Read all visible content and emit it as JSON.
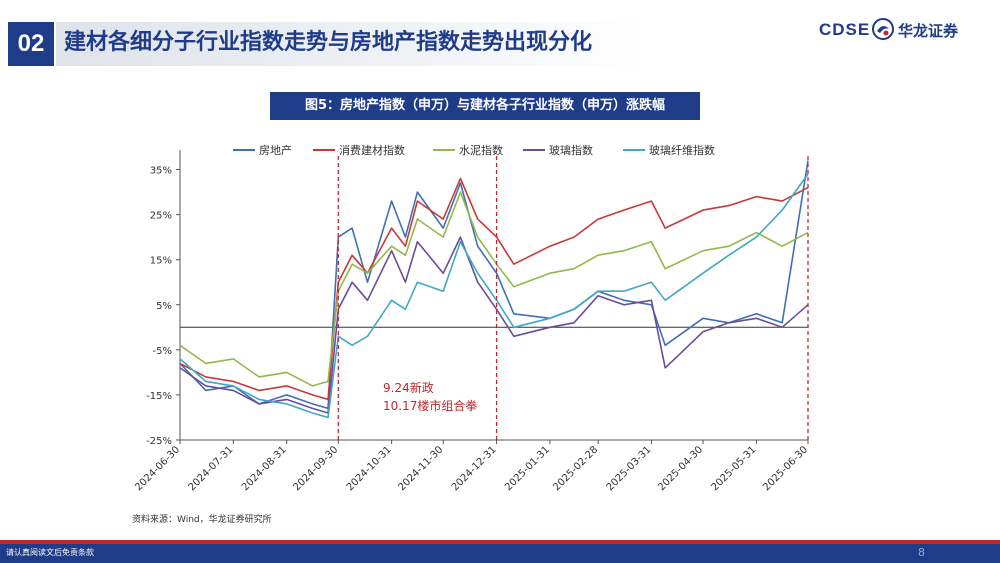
{
  "header": {
    "section_number": "02",
    "title": "建材各细分子行业指数走势与房地产指数走势出现分化",
    "logo_text": "CDSE",
    "logo_cn": "华龙证券"
  },
  "figure": {
    "caption": "图5：房地产指数（申万）与建材各子行业指数（申万）涨跌幅",
    "source": "资料来源：Wind，华龙证券研究所"
  },
  "footer": {
    "disclaimer": "请认真阅读文后免责条款",
    "page_number": "8"
  },
  "colors": {
    "brand": "#1f3c88",
    "accent_red": "#c0282d",
    "series": [
      "#3f6fb5",
      "#c8383b",
      "#93b84a",
      "#6a4c9c",
      "#40a8c4"
    ]
  },
  "chart_data": {
    "type": "line",
    "title": "",
    "xlabel": "",
    "ylabel": "",
    "ylim": [
      -25,
      38
    ],
    "y_ticks": [
      35,
      25,
      15,
      5,
      -5,
      -15,
      -25
    ],
    "y_tick_labels": [
      "35%",
      "25%",
      "15%",
      "5%",
      "-5%",
      "-15%",
      "-25%"
    ],
    "x_tick_labels": [
      "2024-06-30",
      "2024-07-31",
      "2024-08-31",
      "2024-09-30",
      "2024-10-31",
      "2024-11-30",
      "2024-12-31",
      "2025-01-31",
      "2025-02-28",
      "2025-03-31",
      "2025-04-30",
      "2025-05-31",
      "2025-06-30"
    ],
    "legend_position": "top",
    "x": [
      "2024-06-30",
      "2024-07-15",
      "2024-07-31",
      "2024-08-15",
      "2024-08-31",
      "2024-09-15",
      "2024-09-24",
      "2024-09-30",
      "2024-10-08",
      "2024-10-17",
      "2024-10-31",
      "2024-11-08",
      "2024-11-15",
      "2024-11-30",
      "2024-12-10",
      "2024-12-20",
      "2024-12-31",
      "2025-01-10",
      "2025-01-31",
      "2025-02-14",
      "2025-02-28",
      "2025-03-15",
      "2025-03-31",
      "2025-04-08",
      "2025-04-30",
      "2025-05-15",
      "2025-05-31",
      "2025-06-15",
      "2025-06-30"
    ],
    "series": [
      {
        "name": "房地产",
        "values": [
          -8,
          -14,
          -13,
          -17,
          -15,
          -17,
          -18,
          20,
          22,
          10,
          28,
          20,
          30,
          22,
          32,
          18,
          12,
          3,
          2,
          4,
          8,
          6,
          5,
          -4,
          2,
          1,
          3,
          1,
          37
        ]
      },
      {
        "name": "消费建材指数",
        "values": [
          -8,
          -11,
          -12,
          -14,
          -13,
          -15,
          -16,
          10,
          16,
          12,
          22,
          18,
          28,
          24,
          33,
          24,
          20,
          14,
          18,
          20,
          24,
          26,
          28,
          22,
          26,
          27,
          29,
          28,
          31
        ]
      },
      {
        "name": "水泥指数",
        "values": [
          -4,
          -8,
          -7,
          -11,
          -10,
          -13,
          -12,
          8,
          14,
          12,
          18,
          16,
          24,
          20,
          30,
          20,
          14,
          9,
          12,
          13,
          16,
          17,
          19,
          13,
          17,
          18,
          21,
          18,
          21
        ]
      },
      {
        "name": "玻璃指数",
        "values": [
          -9,
          -13,
          -14,
          -17,
          -16,
          -18,
          -19,
          4,
          10,
          6,
          17,
          10,
          19,
          12,
          20,
          10,
          4,
          -2,
          0,
          1,
          7,
          5,
          6,
          -9,
          -1,
          1,
          2,
          0,
          5
        ]
      },
      {
        "name": "玻璃纤维指数",
        "values": [
          -7,
          -12,
          -13,
          -16,
          -17,
          -19,
          -20,
          -2,
          -4,
          -2,
          6,
          4,
          10,
          8,
          19,
          12,
          6,
          0,
          2,
          4,
          8,
          8,
          10,
          6,
          12,
          16,
          20,
          26,
          34
        ]
      }
    ],
    "event_lines": [
      "2024-09-30",
      "2024-12-31",
      "2025-06-30"
    ],
    "annotations": [
      "9.24新政",
      "10.17楼市组合拳"
    ]
  }
}
